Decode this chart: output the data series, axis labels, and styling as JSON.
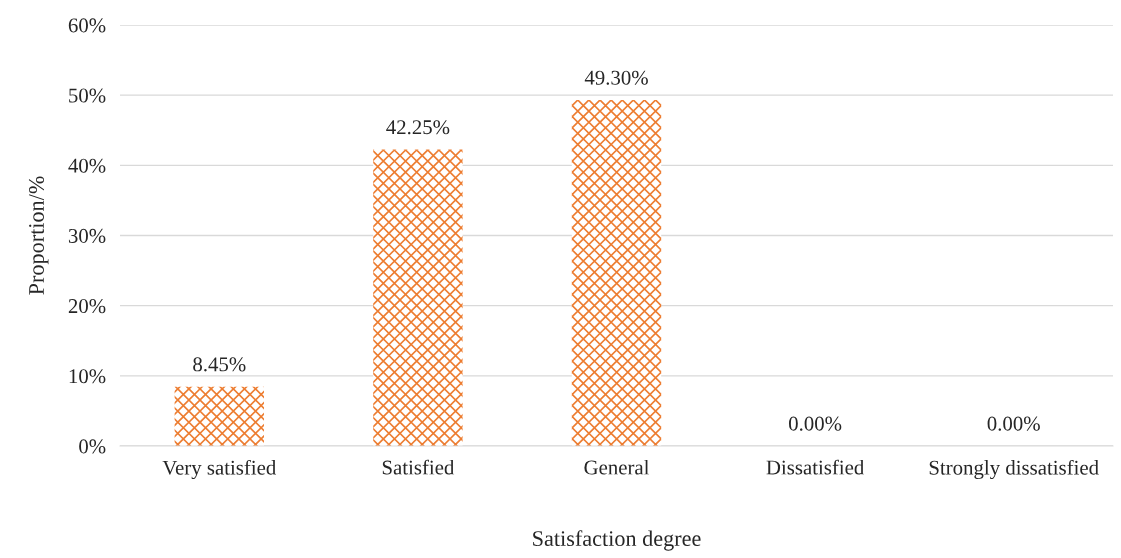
{
  "chart_data": {
    "type": "bar",
    "xlabel": "Satisfaction degree",
    "ylabel": "Proportion/%",
    "categories": [
      "Very satisfied",
      "Satisfied",
      "General",
      "Dissatisfied",
      "Strongly dissatisfied"
    ],
    "values": [
      8.45,
      42.25,
      49.3,
      0.0,
      0.0
    ],
    "value_labels": [
      "8.45%",
      "42.25%",
      "49.30%",
      "0.00%",
      "0.00%"
    ],
    "color": "#ed7d31",
    "ylim": [
      0,
      60
    ],
    "yticks": [
      {
        "value": 0,
        "label": "0%"
      },
      {
        "value": 10,
        "label": "10%"
      },
      {
        "value": 20,
        "label": "20%"
      },
      {
        "value": 30,
        "label": "30%"
      },
      {
        "value": 40,
        "label": "40%"
      },
      {
        "value": 50,
        "label": "50%"
      },
      {
        "value": 60,
        "label": "60%"
      }
    ],
    "grid": "y",
    "legend": false
  }
}
